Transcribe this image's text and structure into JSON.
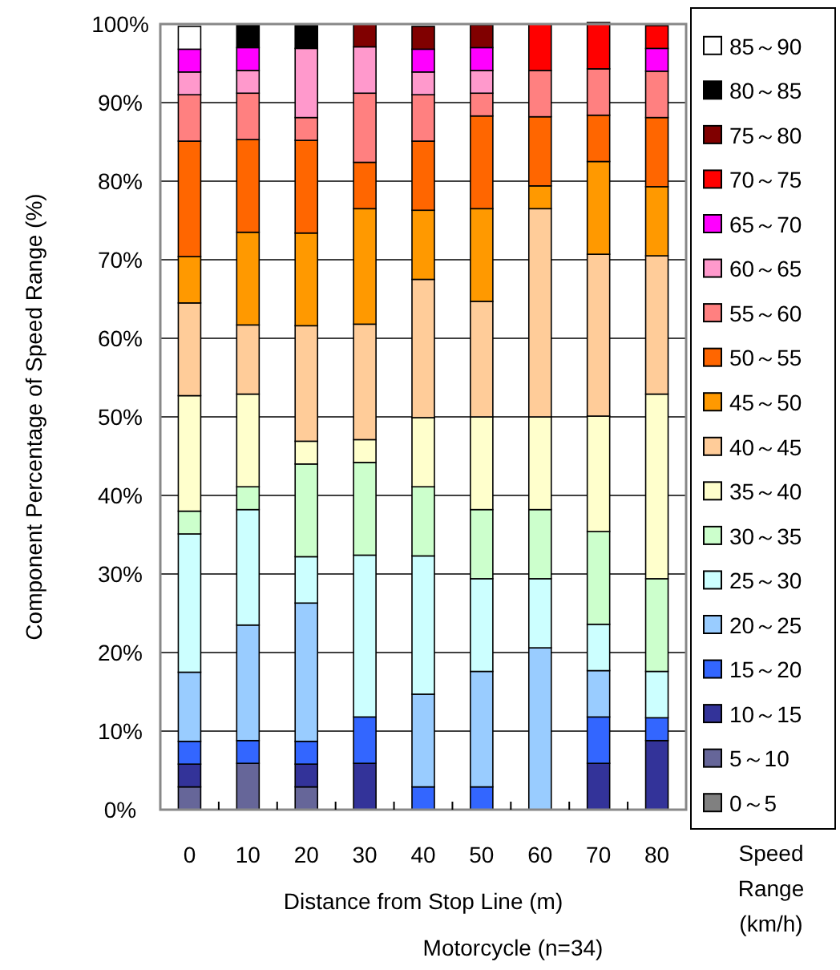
{
  "chart_data": {
    "type": "bar",
    "stacked": true,
    "xlabel": "Distance from Stop Line (m)",
    "ylabel": "Component Percentage of Speed Range (%)",
    "legend_title": "Speed Range (km/h)",
    "annotations": [
      "Motorcycle (n=34)"
    ],
    "categories": [
      "0",
      "10",
      "20",
      "30",
      "40",
      "50",
      "60",
      "70",
      "80"
    ],
    "ylim": [
      0,
      100
    ],
    "yticks": [
      {
        "value": 0,
        "label": "0%"
      },
      {
        "value": 10,
        "label": "10%"
      },
      {
        "value": 20,
        "label": "20%"
      },
      {
        "value": 30,
        "label": "30%"
      },
      {
        "value": 40,
        "label": "40%"
      },
      {
        "value": 50,
        "label": "50%"
      },
      {
        "value": 60,
        "label": "60%"
      },
      {
        "value": 70,
        "label": "70%"
      },
      {
        "value": 80,
        "label": "80%"
      },
      {
        "value": 90,
        "label": "90%"
      },
      {
        "value": 100,
        "label": "100%"
      }
    ],
    "grid": "y",
    "legend": "right",
    "series": [
      {
        "name": "0～5",
        "color": "#808080",
        "values": [
          0,
          0,
          0,
          0,
          0,
          0,
          0,
          0,
          0
        ]
      },
      {
        "name": "5～10",
        "color": "#666699",
        "values": [
          2.9,
          5.9,
          2.9,
          0,
          0,
          0,
          0,
          0,
          0
        ]
      },
      {
        "name": "10～15",
        "color": "#333399",
        "values": [
          2.9,
          0,
          2.9,
          5.9,
          0,
          0,
          0,
          5.9,
          8.8
        ]
      },
      {
        "name": "15～20",
        "color": "#3366ff",
        "values": [
          2.9,
          2.9,
          2.9,
          5.9,
          2.9,
          2.9,
          0,
          5.9,
          2.9
        ]
      },
      {
        "name": "20～25",
        "color": "#99ccff",
        "values": [
          8.8,
          14.7,
          17.6,
          0,
          11.8,
          14.7,
          20.6,
          5.9,
          0
        ]
      },
      {
        "name": "25～30",
        "color": "#ccffff",
        "values": [
          17.6,
          14.7,
          5.9,
          20.6,
          17.6,
          11.8,
          8.8,
          5.9,
          5.9
        ]
      },
      {
        "name": "30～35",
        "color": "#ccffcc",
        "values": [
          2.9,
          2.9,
          11.8,
          11.8,
          8.8,
          8.8,
          8.8,
          11.8,
          11.8
        ]
      },
      {
        "name": "35～40",
        "color": "#ffffcc",
        "values": [
          14.7,
          11.8,
          2.9,
          2.9,
          8.8,
          11.8,
          11.8,
          14.7,
          23.5
        ]
      },
      {
        "name": "40～45",
        "color": "#ffcc99",
        "values": [
          11.8,
          8.8,
          14.7,
          14.7,
          17.6,
          14.7,
          26.5,
          20.6,
          17.6
        ]
      },
      {
        "name": "45～50",
        "color": "#ff9900",
        "values": [
          5.9,
          11.8,
          11.8,
          14.7,
          8.8,
          11.8,
          2.9,
          11.8,
          8.8
        ]
      },
      {
        "name": "50～55",
        "color": "#ff6600",
        "values": [
          14.7,
          11.8,
          11.8,
          5.9,
          8.8,
          11.8,
          8.8,
          5.9,
          8.8
        ]
      },
      {
        "name": "55～60",
        "color": "#ff8080",
        "values": [
          5.9,
          5.9,
          2.9,
          8.8,
          5.9,
          2.9,
          5.9,
          5.9,
          5.9
        ]
      },
      {
        "name": "60～65",
        "color": "#ff99cc",
        "values": [
          2.9,
          2.9,
          8.8,
          5.9,
          2.9,
          2.9,
          0,
          0,
          0
        ]
      },
      {
        "name": "65～70",
        "color": "#ff00ff",
        "values": [
          2.9,
          2.9,
          0,
          0,
          2.9,
          2.9,
          0,
          0,
          2.9
        ]
      },
      {
        "name": "70～75",
        "color": "#ff0000",
        "values": [
          0,
          0,
          0,
          0,
          0,
          0,
          5.9,
          5.9,
          2.9
        ]
      },
      {
        "name": "75～80",
        "color": "#800000",
        "values": [
          0,
          0,
          0,
          2.9,
          2.9,
          2.9,
          0,
          0,
          0
        ]
      },
      {
        "name": "80～85",
        "color": "#000000",
        "values": [
          0,
          2.9,
          2.9,
          0,
          0,
          0,
          0,
          0,
          0
        ]
      },
      {
        "name": "85～90",
        "color": "#ffffff",
        "values": [
          2.9,
          0,
          0,
          0,
          0,
          0,
          0,
          0,
          0
        ]
      }
    ]
  }
}
